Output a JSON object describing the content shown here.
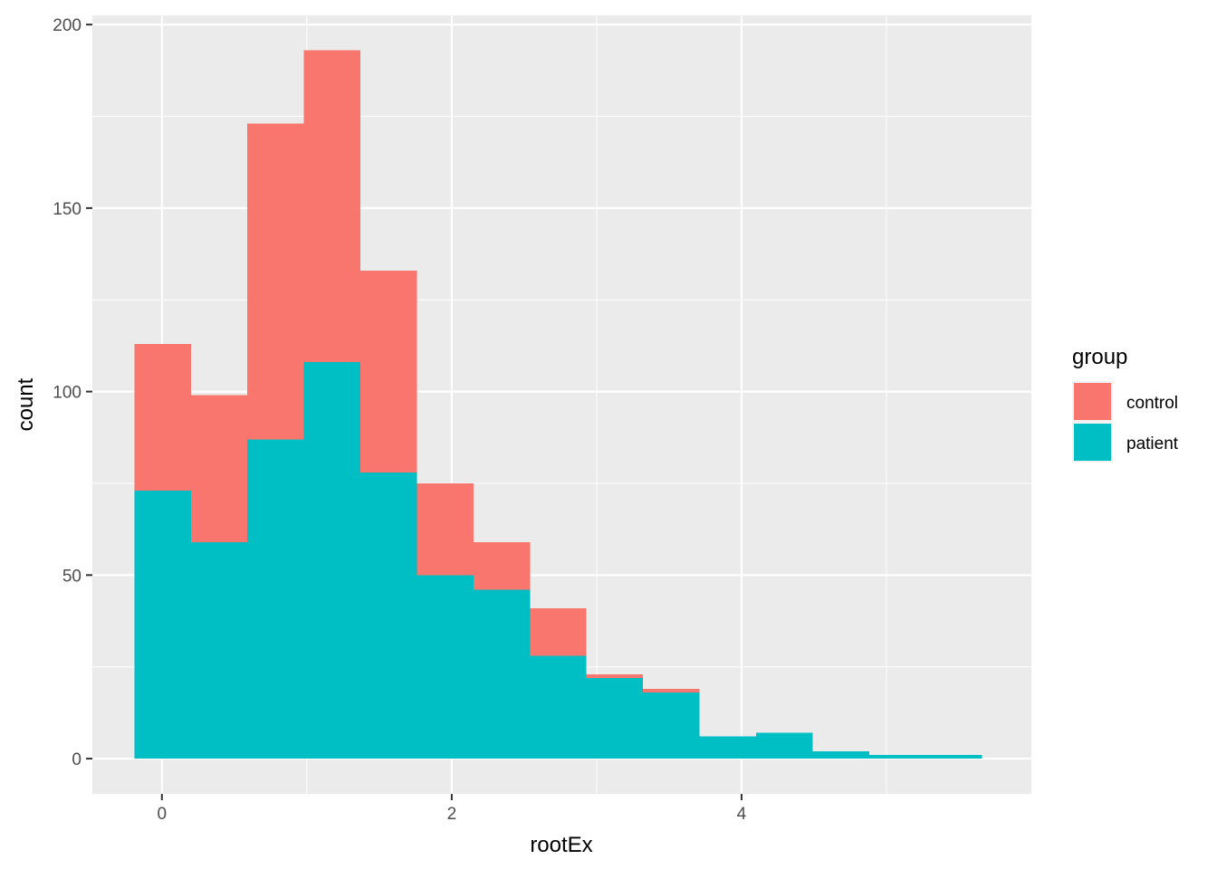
{
  "chart_data": {
    "type": "histogram",
    "stacked": true,
    "xlabel": "rootEx",
    "ylabel": "count",
    "xlim": [
      -0.48,
      6.0
    ],
    "ylim": [
      -9.6,
      202.5
    ],
    "x_ticks": [
      0,
      2,
      4
    ],
    "x_minor_ticks": [
      1,
      3,
      5
    ],
    "y_ticks": [
      0,
      50,
      100,
      150,
      200
    ],
    "y_minor_ticks": [
      25,
      75,
      125,
      175
    ],
    "bin_edges": [
      -0.19,
      0.2,
      0.59,
      0.98,
      1.37,
      1.76,
      2.15,
      2.54,
      2.93,
      3.32,
      3.71,
      4.1,
      4.49,
      4.88,
      5.27,
      5.66
    ],
    "series": [
      {
        "name": "control",
        "color": "#F8766D",
        "values": [
          40,
          40,
          86,
          85,
          55,
          25,
          13,
          13,
          1,
          1,
          0,
          0,
          0,
          0,
          0
        ]
      },
      {
        "name": "patient",
        "color": "#00BFC4",
        "values": [
          73,
          59,
          87,
          108,
          78,
          50,
          46,
          28,
          22,
          18,
          6,
          7,
          2,
          1,
          1
        ]
      }
    ],
    "panel_background": "#EBEBEB",
    "grid": true,
    "legend": {
      "title": "group",
      "position": "right"
    }
  }
}
